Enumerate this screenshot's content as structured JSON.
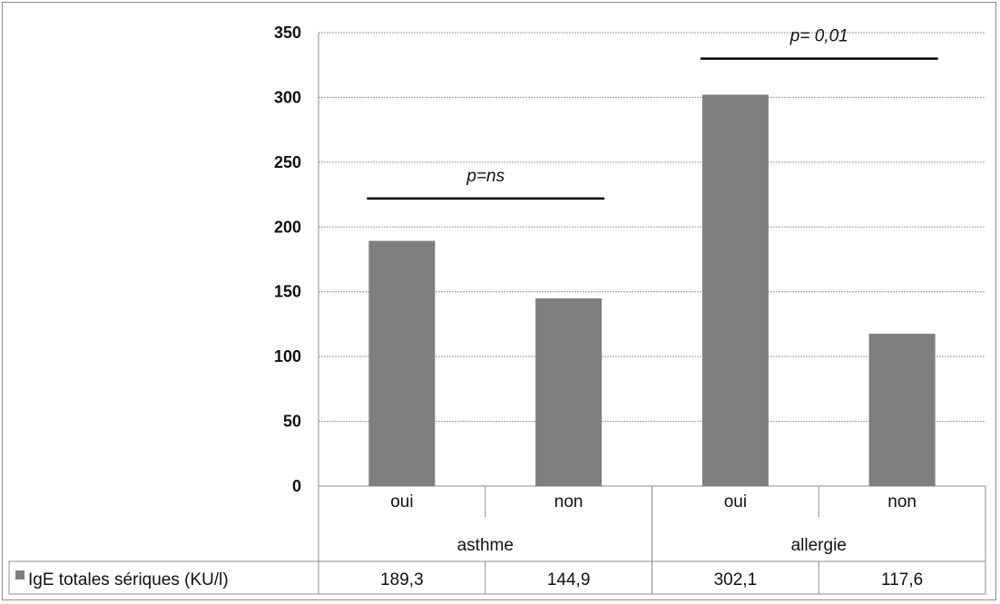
{
  "chart_data": {
    "type": "bar",
    "categories": [
      {
        "label": "oui",
        "group": "asthme"
      },
      {
        "label": "non",
        "group": "asthme"
      },
      {
        "label": "oui",
        "group": "allergie"
      },
      {
        "label": "non",
        "group": "allergie"
      }
    ],
    "groups": [
      "asthme",
      "allergie"
    ],
    "series": [
      {
        "name": "IgE totales sériques (KU/l)",
        "values": [
          189.3,
          144.9,
          302.1,
          117.6
        ],
        "value_labels": [
          "189,3",
          "144,9",
          "302,1",
          "117,6"
        ],
        "color": "#7f7f7f"
      }
    ],
    "ylim": [
      0,
      350
    ],
    "yticks": [
      0,
      50,
      100,
      150,
      200,
      250,
      300,
      350
    ],
    "grid": true,
    "legend": "data-table",
    "annotations": [
      {
        "text": "p=ns",
        "from_category": 0,
        "to_category": 1,
        "level": 222
      },
      {
        "text": "p= 0,01",
        "from_category": 2,
        "to_category": 3,
        "level": 330
      }
    ]
  }
}
